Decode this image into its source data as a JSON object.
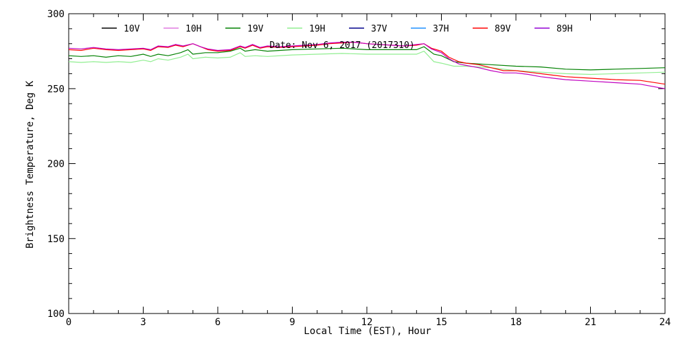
{
  "chart_data": {
    "type": "line",
    "title": "",
    "annotation": "Date: Nov  6, 2017 (2017310)",
    "xlabel": "Local Time (EST), Hour",
    "ylabel": "Brightness Temperature, Deg K",
    "xlim": [
      0,
      24
    ],
    "ylim": [
      100,
      300
    ],
    "xticks": [
      0,
      3,
      6,
      9,
      12,
      15,
      18,
      21,
      24
    ],
    "yticks": [
      100,
      150,
      200,
      250,
      300
    ],
    "grid": false,
    "legend_position": "top, inside plot",
    "legend": [
      {
        "name": "10V",
        "color": "#000000"
      },
      {
        "name": "10H",
        "color": "#e07ae0"
      },
      {
        "name": "19V",
        "color": "#008000"
      },
      {
        "name": "19H",
        "color": "#90ee90"
      },
      {
        "name": "37V",
        "color": "#00008b"
      },
      {
        "name": "37H",
        "color": "#1e90ff"
      },
      {
        "name": "89V",
        "color": "#ff0000"
      },
      {
        "name": "89H",
        "color": "#9400d3"
      }
    ],
    "series": [
      {
        "name": "19V",
        "color": "#008000",
        "points": [
          [
            0,
            272
          ],
          [
            0.5,
            271.5
          ],
          [
            1,
            272
          ],
          [
            1.5,
            271
          ],
          [
            2,
            272
          ],
          [
            2.5,
            271.5
          ],
          [
            3,
            273
          ],
          [
            3.3,
            271.5
          ],
          [
            3.6,
            273
          ],
          [
            4,
            272
          ],
          [
            4.5,
            274
          ],
          [
            4.8,
            276
          ],
          [
            5,
            273
          ],
          [
            5.5,
            274
          ],
          [
            6,
            274
          ],
          [
            6.5,
            275
          ],
          [
            6.9,
            277
          ],
          [
            7.1,
            275
          ],
          [
            7.5,
            276
          ],
          [
            8,
            275
          ],
          [
            9,
            276
          ],
          [
            10,
            276.5
          ],
          [
            11,
            277
          ],
          [
            12,
            276
          ],
          [
            13,
            276
          ],
          [
            14,
            276
          ],
          [
            14.3,
            278
          ],
          [
            14.7,
            273
          ],
          [
            15,
            272
          ],
          [
            15.5,
            268
          ],
          [
            16,
            267
          ],
          [
            17,
            266
          ],
          [
            18,
            265
          ],
          [
            19,
            264.5
          ],
          [
            20,
            263
          ],
          [
            21,
            262.5
          ],
          [
            22,
            263
          ],
          [
            23,
            263.5
          ],
          [
            24,
            264
          ]
        ]
      },
      {
        "name": "19H",
        "color": "#90ee90",
        "points": [
          [
            0,
            268
          ],
          [
            0.5,
            267.5
          ],
          [
            1,
            268
          ],
          [
            1.5,
            267.5
          ],
          [
            2,
            268
          ],
          [
            2.5,
            267.5
          ],
          [
            3,
            269
          ],
          [
            3.3,
            268
          ],
          [
            3.6,
            270
          ],
          [
            4,
            269
          ],
          [
            4.5,
            271
          ],
          [
            4.8,
            273
          ],
          [
            5,
            270
          ],
          [
            5.5,
            271
          ],
          [
            6,
            270.5
          ],
          [
            6.5,
            271
          ],
          [
            6.9,
            274
          ],
          [
            7.1,
            271.5
          ],
          [
            7.5,
            272
          ],
          [
            8,
            271.5
          ],
          [
            9,
            272.5
          ],
          [
            10,
            273
          ],
          [
            11,
            273.5
          ],
          [
            12,
            273
          ],
          [
            13,
            273
          ],
          [
            14,
            273
          ],
          [
            14.3,
            275
          ],
          [
            14.7,
            268
          ],
          [
            15,
            267
          ],
          [
            15.5,
            265
          ],
          [
            16,
            265
          ],
          [
            17,
            264
          ],
          [
            18,
            262
          ],
          [
            19,
            261
          ],
          [
            20,
            260
          ],
          [
            21,
            259.5
          ],
          [
            22,
            260
          ],
          [
            23,
            260.5
          ],
          [
            24,
            261
          ]
        ]
      },
      {
        "name": "89V",
        "color": "#ff0000",
        "points": [
          [
            0,
            276
          ],
          [
            0.5,
            275.5
          ],
          [
            1,
            277
          ],
          [
            1.5,
            276
          ],
          [
            2,
            275.5
          ],
          [
            2.5,
            276
          ],
          [
            3,
            276.5
          ],
          [
            3.3,
            275.5
          ],
          [
            3.6,
            278
          ],
          [
            4,
            277.5
          ],
          [
            4.3,
            279
          ],
          [
            4.6,
            278
          ],
          [
            5,
            280
          ],
          [
            5.3,
            278
          ],
          [
            5.6,
            276
          ],
          [
            6,
            275
          ],
          [
            6.5,
            275.5
          ],
          [
            6.9,
            278
          ],
          [
            7.1,
            277
          ],
          [
            7.4,
            279
          ],
          [
            7.7,
            277
          ],
          [
            8,
            278
          ],
          [
            8.5,
            277.5
          ],
          [
            9,
            278
          ],
          [
            9.5,
            278.5
          ],
          [
            10,
            279
          ],
          [
            10.5,
            280
          ],
          [
            11,
            280.5
          ],
          [
            11.5,
            281
          ],
          [
            12,
            280
          ],
          [
            12.5,
            279.5
          ],
          [
            13,
            279
          ],
          [
            13.5,
            278.5
          ],
          [
            14,
            279
          ],
          [
            14.3,
            280
          ],
          [
            14.6,
            277
          ],
          [
            15,
            275
          ],
          [
            15.3,
            271
          ],
          [
            15.7,
            268
          ],
          [
            16,
            267
          ],
          [
            16.5,
            266
          ],
          [
            17,
            264
          ],
          [
            17.5,
            262
          ],
          [
            18,
            262
          ],
          [
            18.5,
            261
          ],
          [
            19,
            260
          ],
          [
            19.5,
            259
          ],
          [
            20,
            258
          ],
          [
            21,
            257
          ],
          [
            22,
            256
          ],
          [
            23,
            255.5
          ],
          [
            24,
            253
          ]
        ]
      },
      {
        "name": "89H",
        "color": "#c000c0",
        "points": [
          [
            0,
            277
          ],
          [
            0.5,
            276.5
          ],
          [
            1,
            277.5
          ],
          [
            1.5,
            276.5
          ],
          [
            2,
            276
          ],
          [
            2.5,
            276.5
          ],
          [
            3,
            277
          ],
          [
            3.3,
            276
          ],
          [
            3.6,
            278.5
          ],
          [
            4,
            278
          ],
          [
            4.3,
            279.5
          ],
          [
            4.6,
            278.5
          ],
          [
            5,
            280
          ],
          [
            5.3,
            278
          ],
          [
            5.6,
            276.5
          ],
          [
            6,
            275.5
          ],
          [
            6.5,
            276
          ],
          [
            6.9,
            278.5
          ],
          [
            7.1,
            277.5
          ],
          [
            7.4,
            279.5
          ],
          [
            7.7,
            277.5
          ],
          [
            8,
            278.5
          ],
          [
            8.5,
            278
          ],
          [
            9,
            278.5
          ],
          [
            9.5,
            279
          ],
          [
            10,
            279.5
          ],
          [
            10.5,
            280.5
          ],
          [
            11,
            281
          ],
          [
            11.5,
            281
          ],
          [
            12,
            280
          ],
          [
            12.5,
            279.5
          ],
          [
            13,
            279
          ],
          [
            13.5,
            278.5
          ],
          [
            14,
            279.5
          ],
          [
            14.3,
            280
          ],
          [
            14.6,
            276.5
          ],
          [
            15,
            274
          ],
          [
            15.3,
            270
          ],
          [
            15.7,
            266.5
          ],
          [
            16,
            265.5
          ],
          [
            16.5,
            264
          ],
          [
            17,
            262
          ],
          [
            17.5,
            260.5
          ],
          [
            18,
            260.5
          ],
          [
            18.5,
            259.5
          ],
          [
            19,
            258
          ],
          [
            19.5,
            257
          ],
          [
            20,
            256
          ],
          [
            21,
            255
          ],
          [
            22,
            254
          ],
          [
            23,
            253
          ],
          [
            24,
            250
          ]
        ]
      }
    ]
  }
}
